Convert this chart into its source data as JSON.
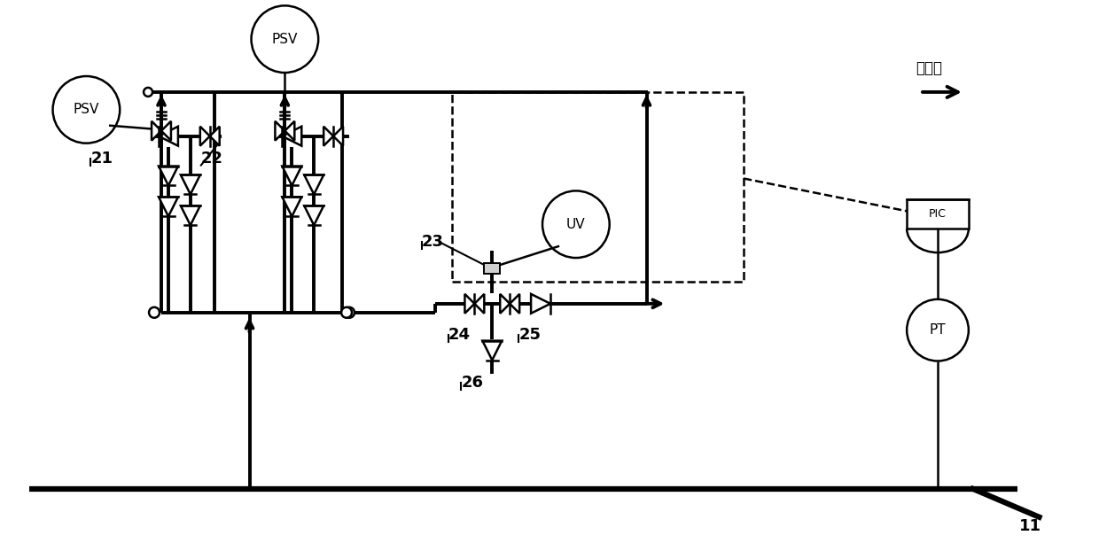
{
  "bg_color": "#ffffff",
  "lc": "#000000",
  "lw_thick": 2.8,
  "lw_med": 1.8,
  "lw_thin": 1.4,
  "fig_w": 12.4,
  "fig_h": 6.13,
  "title_text": "排火炬",
  "label_11": "11",
  "label_21": "21",
  "label_22": "22",
  "label_23": "23",
  "label_24": "24",
  "label_25": "25",
  "label_26": "26"
}
